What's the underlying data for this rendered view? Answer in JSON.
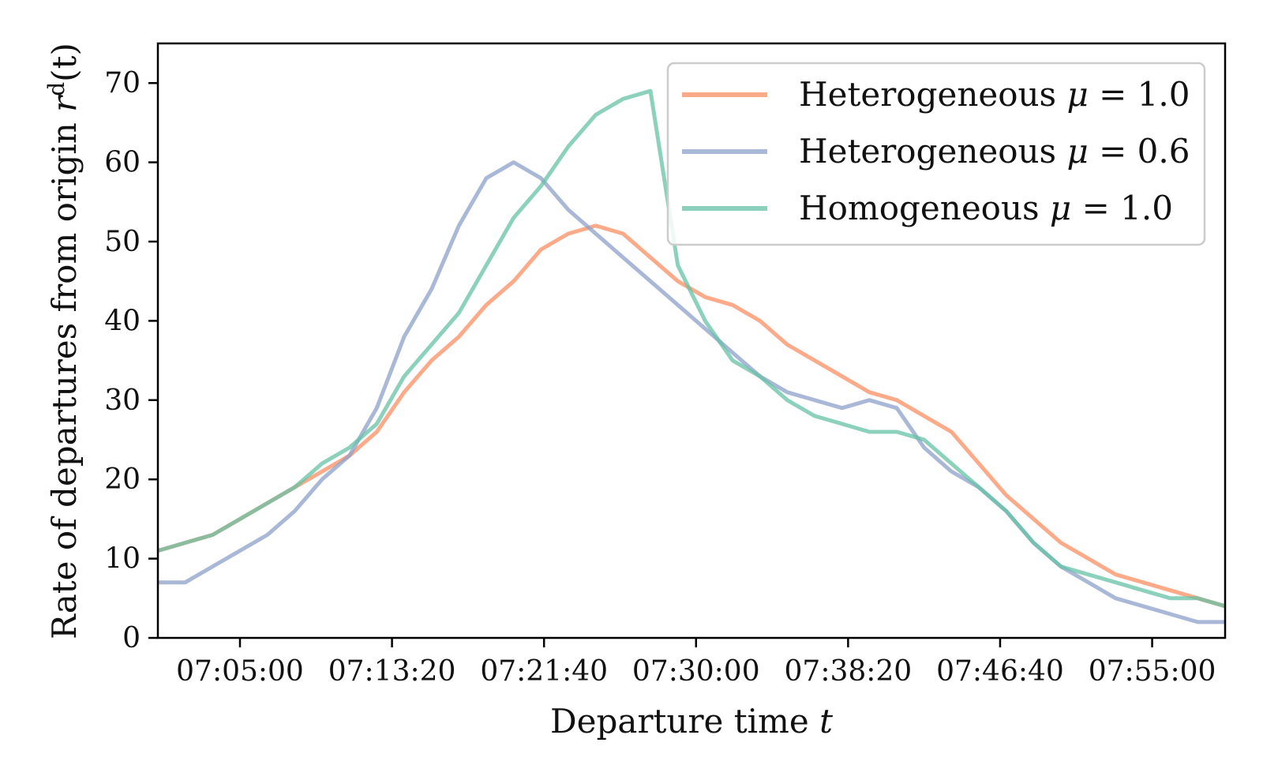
{
  "chart_data": {
    "type": "line",
    "title": "",
    "xlabel": "Departure time",
    "xlabel_var": "t",
    "ylabel": "Rate of departures from origin",
    "ylabel_var": "r",
    "ylabel_sup": "d",
    "ylabel_arg": "(t)",
    "xlim": [
      "07:00:30",
      "07:59:00"
    ],
    "ylim": [
      0,
      75
    ],
    "x_ticks": [
      "07:05:00",
      "07:13:20",
      "07:21:40",
      "07:30:00",
      "07:38:20",
      "07:46:40",
      "07:55:00"
    ],
    "y_ticks": [
      0,
      10,
      20,
      30,
      40,
      50,
      60,
      70
    ],
    "grid": false,
    "legend_position": "top-right",
    "x": [
      "07:00:30",
      "07:02:00",
      "07:03:30",
      "07:05:00",
      "07:06:30",
      "07:08:00",
      "07:09:30",
      "07:11:00",
      "07:12:30",
      "07:14:00",
      "07:15:30",
      "07:17:00",
      "07:18:30",
      "07:20:00",
      "07:21:30",
      "07:23:00",
      "07:24:30",
      "07:26:00",
      "07:27:30",
      "07:29:00",
      "07:30:30",
      "07:32:00",
      "07:33:30",
      "07:35:00",
      "07:36:30",
      "07:38:00",
      "07:39:30",
      "07:41:00",
      "07:42:30",
      "07:44:00",
      "07:45:30",
      "07:47:00",
      "07:48:30",
      "07:50:00",
      "07:51:30",
      "07:53:00",
      "07:54:30",
      "07:56:00",
      "07:57:30",
      "07:59:00"
    ],
    "series": [
      {
        "name": "Heterogeneous",
        "name_var": "μ",
        "name_value": "= 1.0",
        "color": "#fc8d62",
        "values": [
          11,
          12,
          13,
          15,
          17,
          19,
          21,
          23,
          26,
          31,
          35,
          38,
          42,
          45,
          49,
          51,
          52,
          51,
          48,
          45,
          43,
          42,
          40,
          37,
          35,
          33,
          31,
          30,
          28,
          26,
          22,
          18,
          15,
          12,
          10,
          8,
          7,
          6,
          5,
          4
        ]
      },
      {
        "name": "Heterogeneous",
        "name_var": "μ",
        "name_value": "= 0.6",
        "color": "#8da0cb",
        "values": [
          7,
          7,
          9,
          11,
          13,
          16,
          20,
          23,
          29,
          38,
          44,
          52,
          58,
          60,
          58,
          54,
          51,
          48,
          45,
          42,
          39,
          36,
          33,
          31,
          30,
          29,
          30,
          29,
          24,
          21,
          19,
          16,
          12,
          9,
          7,
          5,
          4,
          3,
          2,
          2
        ]
      },
      {
        "name": "Homogeneous",
        "name_var": "μ",
        "name_value": "= 1.0",
        "color": "#66c2a5",
        "values": [
          11,
          12,
          13,
          15,
          17,
          19,
          22,
          24,
          27,
          33,
          37,
          41,
          47,
          53,
          57,
          62,
          66,
          68,
          69,
          47,
          40,
          35,
          33,
          30,
          28,
          27,
          26,
          26,
          25,
          22,
          19,
          16,
          12,
          9,
          8,
          7,
          6,
          5,
          5,
          4
        ]
      }
    ]
  }
}
